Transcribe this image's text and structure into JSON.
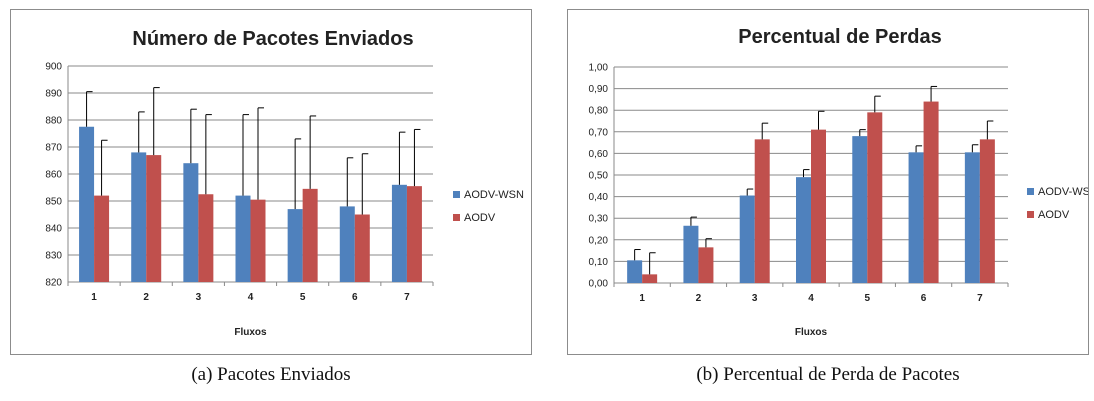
{
  "chart_data": [
    {
      "type": "bar",
      "title": "Número de Pacotes Enviados",
      "xlabel": "Fluxos",
      "ylabel": "",
      "categories": [
        "1",
        "2",
        "3",
        "4",
        "5",
        "6",
        "7"
      ],
      "ylim": [
        820,
        900
      ],
      "yticks": [
        "820",
        "830",
        "840",
        "850",
        "860",
        "870",
        "880",
        "890",
        "900"
      ],
      "grid": true,
      "legend": "right",
      "series": [
        {
          "name": "AODV-WSN",
          "color": "#4f81bd",
          "values": [
            877.5,
            868,
            864,
            852,
            847,
            848,
            856
          ],
          "error": [
            13,
            15,
            20,
            30,
            26,
            18,
            19.5
          ]
        },
        {
          "name": "AODV",
          "color": "#c0504d",
          "values": [
            852,
            867,
            852.5,
            850.5,
            854.5,
            845,
            855.5
          ],
          "error": [
            20.5,
            25,
            29.5,
            34,
            27,
            22.5,
            21
          ]
        }
      ]
    },
    {
      "type": "bar",
      "title": "Percentual de Perdas",
      "xlabel": "Fluxos",
      "ylabel": "",
      "categories": [
        "1",
        "2",
        "3",
        "4",
        "5",
        "6",
        "7"
      ],
      "ylim": [
        0,
        1
      ],
      "yticks": [
        "0,00",
        "0,10",
        "0,20",
        "0,30",
        "0,40",
        "0,50",
        "0,60",
        "0,70",
        "0,80",
        "0,90",
        "1,00"
      ],
      "grid": true,
      "legend": "right",
      "series": [
        {
          "name": "AODV-WSN",
          "color": "#4f81bd",
          "values": [
            0.105,
            0.265,
            0.405,
            0.49,
            0.68,
            0.605,
            0.605
          ],
          "error": [
            0.05,
            0.04,
            0.03,
            0.035,
            0.03,
            0.03,
            0.035
          ]
        },
        {
          "name": "AODV",
          "color": "#c0504d",
          "values": [
            0.04,
            0.165,
            0.665,
            0.71,
            0.79,
            0.84,
            0.665
          ],
          "error": [
            0.1,
            0.04,
            0.075,
            0.085,
            0.075,
            0.07,
            0.085
          ]
        }
      ]
    }
  ],
  "captions": [
    "(a) Pacotes Enviados",
    "(b) Percentual de Perda de Pacotes"
  ]
}
